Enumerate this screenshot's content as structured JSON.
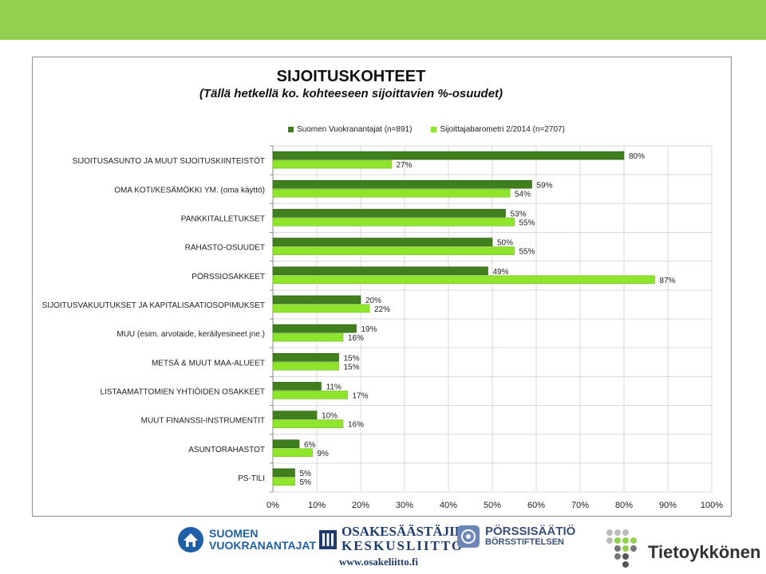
{
  "colors": {
    "topbar": "#92d050",
    "series1": "#3f7f1e",
    "series2": "#8fe52b",
    "grid": "#d9d9d9"
  },
  "chart_data": {
    "type": "bar",
    "orientation": "horizontal",
    "title": "SIJOITUSKOHTEET",
    "subtitle": "(Tällä hetkellä ko. kohteeseen sijoittavien %-osuudet)",
    "categories": [
      "SIJOITUSASUNTO JA MUUT SIJOITUSKIINTEISTÖT",
      "OMA KOTI/KESÄMÖKKI YM. (oma käyttö)",
      "PANKKITALLETUKSET",
      "RAHASTO-OSUUDET",
      "PÖRSSIOSAKKEET",
      "SIJOITUSVAKUUTUKSET JA KAPITALISAATIOSOPIMUKSET",
      "MUU (esim. arvotaide, keräilyesineet jne.)",
      "METSÄ & MUUT MAA-ALUEET",
      "LISTAAMATTOMIEN YHTIÖIDEN OSAKKEET",
      "MUUT FINANSSI-INSTRUMENTIT",
      "ASUNTORAHASTOT",
      "PS-TILI"
    ],
    "series": [
      {
        "name": "Suomen Vuokranantajat (n=891)",
        "color": "#3f7f1e",
        "values": [
          80,
          59,
          53,
          50,
          49,
          20,
          19,
          15,
          11,
          10,
          6,
          5
        ]
      },
      {
        "name": "Sijoittajabarometri 2/2014 (n=2707)",
        "color": "#8fe52b",
        "values": [
          27,
          54,
          55,
          55,
          87,
          22,
          16,
          15,
          17,
          16,
          9,
          5
        ]
      }
    ],
    "xlim": [
      0,
      100
    ],
    "xticks": [
      "0%",
      "10%",
      "20%",
      "30%",
      "40%",
      "50%",
      "60%",
      "70%",
      "80%",
      "90%",
      "100%"
    ],
    "grid": true,
    "legend_position": "top"
  },
  "footer": {
    "logo1": {
      "line1": "SUOMEN",
      "line2": "VUOKRANANTAJAT"
    },
    "logo2": {
      "line1": "OSAKESÄÄSTÄJIEN",
      "line2": "KESKUSLIITTO"
    },
    "logo3": {
      "line1": "PÖRSSISÄÄTIÖ",
      "line2": "BÖRSSTIFTELSEN"
    },
    "logo4": {
      "text": "Tietoykkönen"
    },
    "url": "www.osakeliitto.fi"
  }
}
